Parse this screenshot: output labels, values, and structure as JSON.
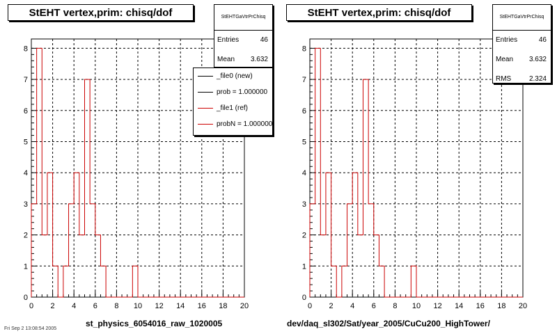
{
  "pads": [
    {
      "title": "StEHT  vertex,prim: chisq/dof",
      "stats": {
        "name": "StEHTGaVtrPrChisq",
        "rows": [
          {
            "k": "Entries",
            "v": "46"
          },
          {
            "k": "Mean",
            "v": "3.632"
          }
        ]
      },
      "legend": [
        {
          "label": "_file0 (new)",
          "color": "#000000"
        },
        {
          "label": "prob = 1.000000",
          "color": "#000000"
        },
        {
          "label": "_file1 (ref)",
          "color": "#cc0000"
        },
        {
          "label": "probN = 1.000000",
          "color": "#cc0000"
        }
      ],
      "xtitle": "st_physics_6054016_raw_1020005"
    },
    {
      "title": "StEHT  vertex,prim: chisq/dof",
      "stats": {
        "name": "StEHTGaVtrPrChisq",
        "rows": [
          {
            "k": "Entries",
            "v": "46"
          },
          {
            "k": "Mean",
            "v": "3.632"
          },
          {
            "k": "RMS",
            "v": "2.324"
          }
        ]
      },
      "xtitle": "dev/daq_sl302/Sat/year_2005/CuCu200_HighTower/"
    }
  ],
  "footer": "Fri Sep 2 13:08:54 2005",
  "chart_data": [
    {
      "type": "histogram",
      "title": "StEHT  vertex,prim: chisq/dof",
      "xlim": [
        0,
        20
      ],
      "ylim": [
        0,
        8.3
      ],
      "xticks": [
        "0",
        "2",
        "4",
        "6",
        "8",
        "10",
        "12",
        "14",
        "16",
        "18",
        "20"
      ],
      "yticks": [
        "0",
        "1",
        "2",
        "3",
        "4",
        "5",
        "6",
        "7",
        "8"
      ],
      "grid": true,
      "bin_width": 0.5,
      "series": [
        {
          "color": "#cc0000",
          "values": [
            3,
            8,
            2,
            4,
            1,
            0,
            1,
            3,
            4,
            2,
            7,
            3,
            2,
            1,
            0,
            0,
            0,
            0,
            0,
            1,
            0,
            0,
            0,
            0,
            0,
            0,
            0,
            0,
            0,
            0,
            0,
            0,
            0,
            0,
            0,
            0,
            0,
            0,
            0,
            0
          ]
        }
      ]
    },
    {
      "type": "histogram",
      "title": "StEHT  vertex,prim: chisq/dof",
      "xlim": [
        0,
        20
      ],
      "ylim": [
        0,
        8.3
      ],
      "xticks": [
        "0",
        "2",
        "4",
        "6",
        "8",
        "10",
        "12",
        "14",
        "16",
        "18",
        "20"
      ],
      "yticks": [
        "0",
        "1",
        "2",
        "3",
        "4",
        "5",
        "6",
        "7",
        "8"
      ],
      "grid": true,
      "bin_width": 0.5,
      "series": [
        {
          "color": "#cc0000",
          "values": [
            3,
            8,
            2,
            4,
            1,
            0,
            1,
            3,
            4,
            2,
            7,
            3,
            2,
            1,
            0,
            0,
            0,
            0,
            0,
            1,
            0,
            0,
            0,
            0,
            0,
            0,
            0,
            0,
            0,
            0,
            0,
            0,
            0,
            0,
            0,
            0,
            0,
            0,
            0,
            0
          ]
        }
      ]
    }
  ]
}
